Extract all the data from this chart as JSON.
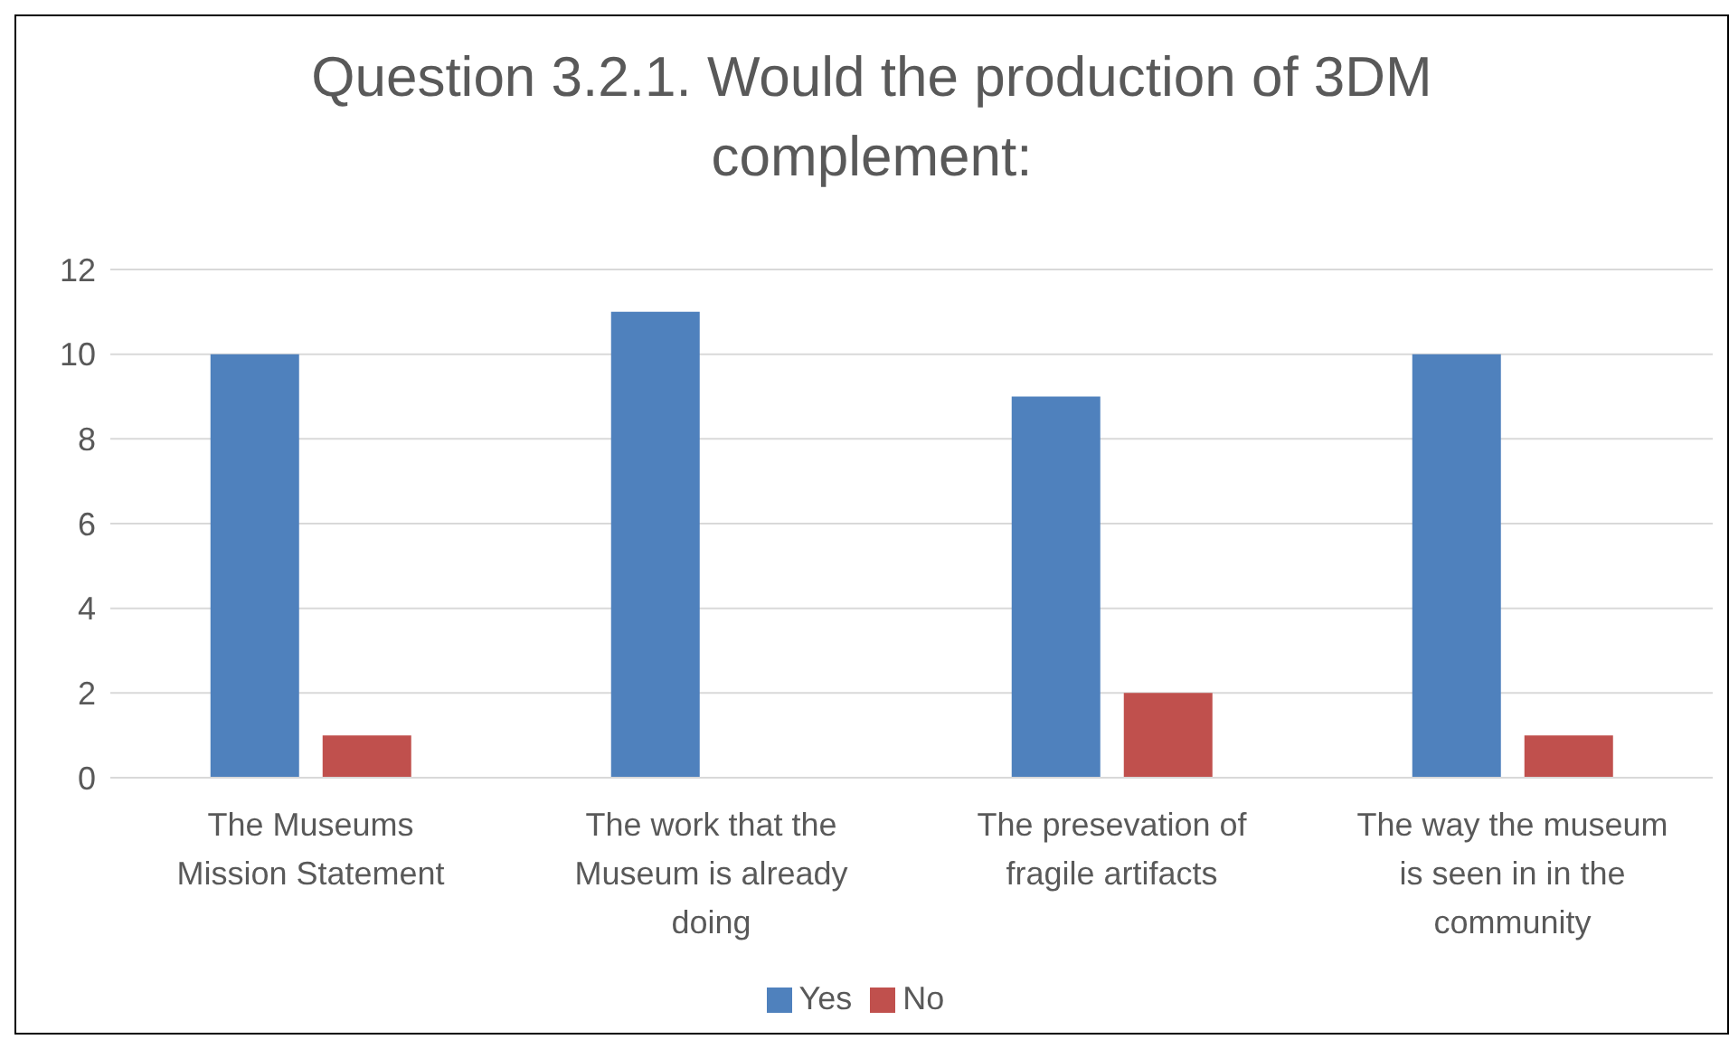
{
  "chart_data": {
    "type": "bar",
    "title": "Question 3.2.1. Would the production of 3DM complement:",
    "categories": [
      "The Museums Mission Statement",
      "The work that the Museum is already doing",
      "The presevation of fragile artifacts",
      "The way the museum is seen in in the community"
    ],
    "series": [
      {
        "name": "Yes",
        "color": "#4f81bd",
        "values": [
          10,
          11,
          9,
          10
        ]
      },
      {
        "name": "No",
        "color": "#c0504d",
        "values": [
          1,
          0,
          2,
          1
        ]
      }
    ],
    "ylim": [
      0,
      12
    ],
    "yticks": [
      0,
      2,
      4,
      6,
      8,
      10,
      12
    ],
    "grid": "y",
    "legend": "bottom"
  }
}
